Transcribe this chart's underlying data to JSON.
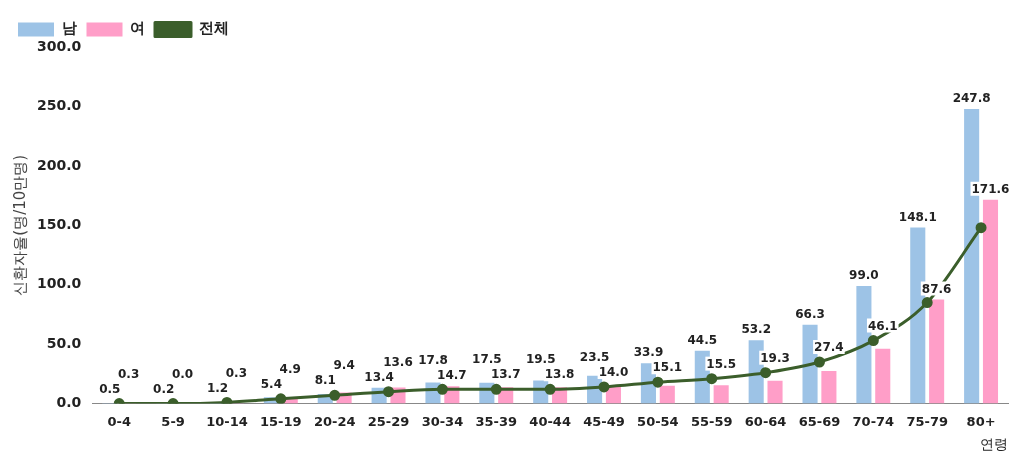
{
  "chart_data": {
    "type": "bar",
    "ylabel": "신환자율(명/10만명)",
    "xlabel": "연령",
    "categories": [
      "0-4",
      "5-9",
      "10-14",
      "15-19",
      "20-24",
      "25-29",
      "30-34",
      "35-39",
      "40-44",
      "45-49",
      "50-54",
      "55-59",
      "60-64",
      "65-69",
      "70-74",
      "75-79",
      "80+"
    ],
    "series": [
      {
        "name": "남",
        "color": "#9dc3e6",
        "values": [
          0.5,
          0.2,
          1.2,
          5.4,
          8.1,
          13.4,
          17.8,
          17.5,
          19.5,
          23.5,
          33.9,
          44.5,
          53.2,
          66.3,
          99.0,
          148.1,
          247.8
        ],
        "value_labels": [
          "0.5",
          "0.2",
          "1.2",
          "5.4",
          "8.1",
          "13.4",
          "17.8",
          "17.5",
          "19.5",
          "23.5",
          "33.9",
          "44.5",
          "53.2",
          "66.3",
          "99.0",
          "148.1",
          "247.8"
        ]
      },
      {
        "name": "여",
        "color": "#ff9ec8",
        "values": [
          0.3,
          0.0,
          0.3,
          4.9,
          9.4,
          13.6,
          14.7,
          13.7,
          13.8,
          14.0,
          15.1,
          15.5,
          19.3,
          27.4,
          46.1,
          87.6,
          171.6
        ],
        "value_labels": [
          "0.3",
          "0.0",
          "0.3",
          "4.9",
          "9.4",
          "13.6",
          "14.7",
          "13.7",
          "13.8",
          "14.0",
          "15.1",
          "15.5",
          "19.3",
          "27.4",
          "46.1",
          "87.6",
          "171.6"
        ]
      },
      {
        "name": "전체",
        "type": "line",
        "color": "#3b5e2b",
        "marker": "circle",
        "values": [
          0,
          0,
          1,
          4,
          7,
          10,
          12,
          12,
          12,
          14,
          18,
          21,
          26,
          35,
          53,
          85,
          148
        ]
      }
    ],
    "ylim": [
      0,
      300
    ],
    "yticks": [
      {
        "value": 0,
        "label": "0.0"
      },
      {
        "value": 50,
        "label": "50.0"
      },
      {
        "value": 100,
        "label": "100.0"
      },
      {
        "value": 150,
        "label": "150.0"
      },
      {
        "value": 200,
        "label": "200.0"
      },
      {
        "value": 250,
        "label": "250.0"
      },
      {
        "value": 300,
        "label": "300.0"
      }
    ],
    "grid": false,
    "legend": "top left"
  }
}
